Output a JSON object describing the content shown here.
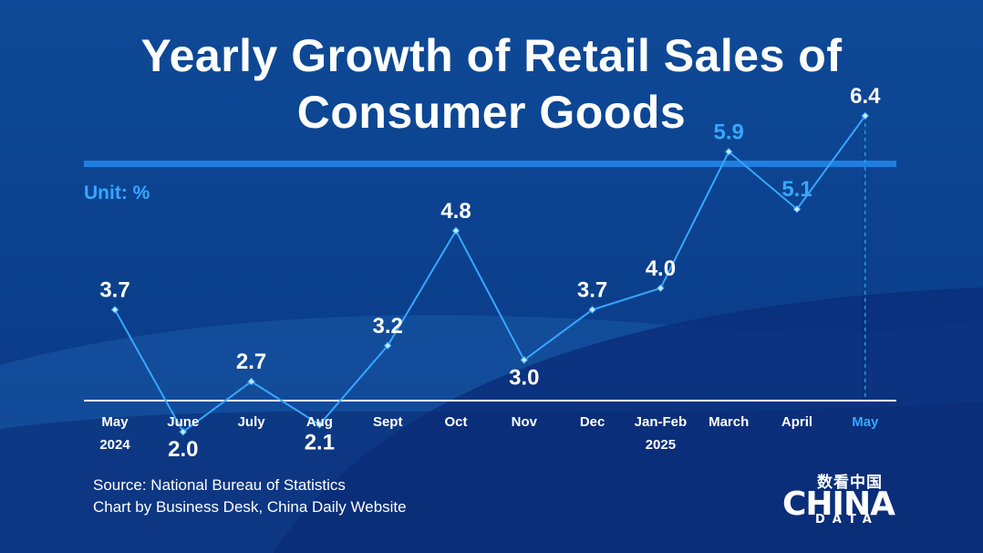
{
  "title": {
    "line1": "Yearly Growth of Retail Sales of",
    "line2": "Consumer Goods"
  },
  "unit_label": "Unit: %",
  "source": {
    "line1": "Source: National Bureau of Statistics",
    "line2": "Chart by Business Desk, China Daily Website"
  },
  "logo": {
    "chinese": "数看中国",
    "main": "CHINA",
    "sub": "DATA"
  },
  "colors": {
    "background": "#0b3f8c",
    "line": "#37a7ff",
    "highlight": "#37a7ff",
    "text": "#ffffff",
    "rule": "#1f7fe0"
  },
  "chart_data": {
    "type": "line",
    "title": "Yearly Growth of Retail Sales of Consumer Goods",
    "ylabel": "Unit: %",
    "categories": [
      "May",
      "June",
      "July",
      "Aug",
      "Sept",
      "Oct",
      "Nov",
      "Dec",
      "Jan-Feb",
      "March",
      "April",
      "May"
    ],
    "category_sublabels": [
      "2024",
      "",
      "",
      "",
      "",
      "",
      "",
      "",
      "2025",
      "",
      "",
      ""
    ],
    "series": [
      {
        "values": [
          3.7,
          2.0,
          2.7,
          2.1,
          3.2,
          4.8,
          3.0,
          3.7,
          4.0,
          5.9,
          5.1,
          6.4
        ]
      }
    ],
    "highlighted_labels": [
      9,
      10
    ],
    "highlighted_category": 11,
    "ylim": [
      0,
      7.5
    ],
    "grid": false,
    "legend": "none"
  }
}
